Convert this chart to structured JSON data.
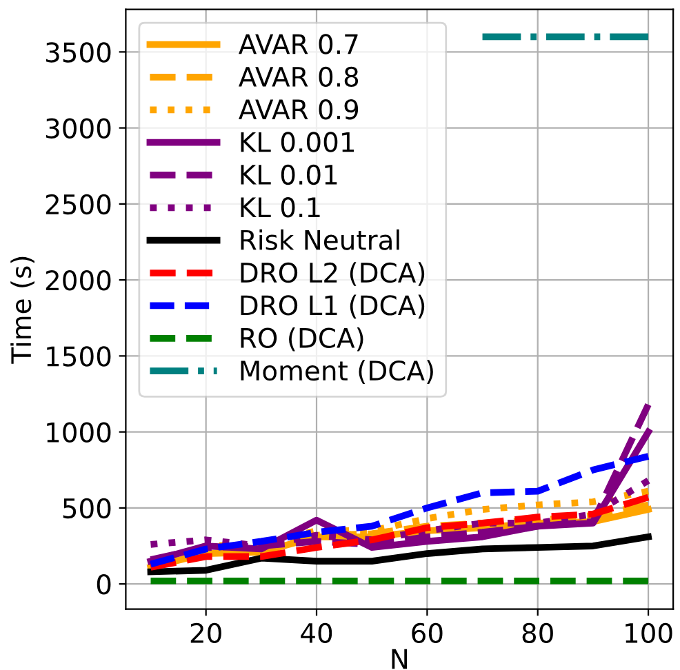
{
  "chart_data": {
    "type": "line",
    "xlabel": "N",
    "ylabel": "Time (s)",
    "x": [
      10,
      20,
      30,
      40,
      50,
      60,
      70,
      80,
      90,
      100
    ],
    "series": [
      {
        "name": "AVAR 0.7",
        "color": "#ffa500",
        "line_style": "solid",
        "values": [
          110,
          200,
          210,
          310,
          310,
          350,
          370,
          400,
          410,
          490
        ]
      },
      {
        "name": "AVAR 0.8",
        "color": "#ffa500",
        "line_style": "dashed",
        "values": [
          120,
          220,
          250,
          320,
          330,
          380,
          400,
          420,
          450,
          520
        ]
      },
      {
        "name": "AVAR 0.9",
        "color": "#ffa500",
        "line_style": "dotted",
        "values": [
          140,
          250,
          260,
          350,
          350,
          430,
          490,
          520,
          540,
          610
        ]
      },
      {
        "name": "KL 0.001",
        "color": "#800080",
        "line_style": "solid",
        "values": [
          150,
          250,
          230,
          420,
          240,
          280,
          310,
          380,
          400,
          1000
        ]
      },
      {
        "name": "KL 0.01",
        "color": "#800080",
        "line_style": "dashed",
        "values": [
          160,
          240,
          250,
          280,
          260,
          310,
          340,
          380,
          410,
          1180
        ]
      },
      {
        "name": "KL 0.1",
        "color": "#800080",
        "line_style": "dotted",
        "values": [
          260,
          290,
          250,
          320,
          290,
          350,
          400,
          400,
          460,
          680
        ]
      },
      {
        "name": "Risk Neutral",
        "color": "#000000",
        "line_style": "solid",
        "values": [
          80,
          90,
          170,
          150,
          150,
          200,
          230,
          240,
          250,
          310
        ]
      },
      {
        "name": "DRO L2 (DCA)",
        "color": "#ff0000",
        "line_style": "dashed",
        "values": [
          110,
          180,
          180,
          240,
          290,
          370,
          400,
          440,
          460,
          570
        ]
      },
      {
        "name": "DRO L1 (DCA)",
        "color": "#0000ff",
        "line_style": "dashed",
        "values": [
          130,
          230,
          280,
          340,
          380,
          500,
          600,
          610,
          750,
          840
        ]
      },
      {
        "name": "RO (DCA)",
        "color": "#008000",
        "line_style": "dashed",
        "values": [
          20,
          20,
          20,
          20,
          20,
          20,
          20,
          20,
          20,
          20
        ]
      },
      {
        "name": "Moment (DCA)",
        "color": "#008080",
        "line_style": "dashdot",
        "values": [
          null,
          null,
          null,
          null,
          null,
          null,
          3600,
          3600,
          3600,
          3600
        ]
      }
    ],
    "xlim": [
      5.5,
      104.5
    ],
    "ylim": [
      -165,
      3780
    ],
    "xticks": [
      20,
      40,
      60,
      80,
      100
    ],
    "yticks": [
      0,
      500,
      1000,
      1500,
      2000,
      2500,
      3000,
      3500
    ],
    "grid": true,
    "legend": "top left",
    "marker": "none"
  }
}
